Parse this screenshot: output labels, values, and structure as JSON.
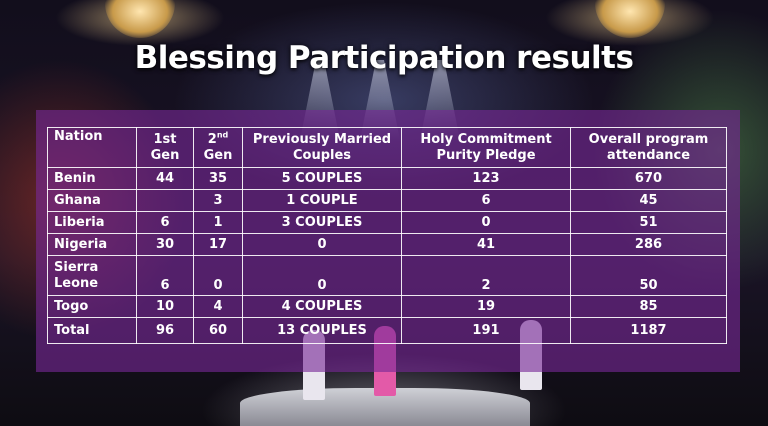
{
  "title": "Blessing Participation results",
  "headers": {
    "nation": "Nation",
    "gen1": [
      "1st",
      "Gen"
    ],
    "gen2": [
      "2",
      "nd",
      "Gen"
    ],
    "married": [
      "Previously Married",
      "Couples"
    ],
    "holy": [
      "Holy Commitment",
      "Purity Pledge"
    ],
    "overall": [
      "Overall program",
      "attendance"
    ]
  },
  "rows": [
    {
      "nation": [
        "Benin"
      ],
      "gen1": "44",
      "gen2": "35",
      "married": "5 COUPLES",
      "holy": "123",
      "overall": "670"
    },
    {
      "nation": [
        "Ghana"
      ],
      "gen1": "",
      "gen2": "3",
      "married": "1 COUPLE",
      "holy": "6",
      "overall": "45"
    },
    {
      "nation": [
        "Liberia"
      ],
      "gen1": "6",
      "gen2": "1",
      "married": "3 COUPLES",
      "holy": "0",
      "overall": "51"
    },
    {
      "nation": [
        "Nigeria"
      ],
      "gen1": "30",
      "gen2": "17",
      "married": "0",
      "holy": "41",
      "overall": "286"
    },
    {
      "nation": [
        "Sierra",
        "Leone"
      ],
      "gen1": "6",
      "gen2": "0",
      "married": "0",
      "holy": "2",
      "overall": "50"
    },
    {
      "nation": [
        "Togo"
      ],
      "gen1": "10",
      "gen2": "4",
      "married": "4 COUPLES",
      "holy": "19",
      "overall": "85"
    },
    {
      "nation": [
        "Total"
      ],
      "gen1": "96",
      "gen2": "60",
      "married": "13 COUPLES",
      "holy": "191",
      "overall": "1187"
    }
  ]
}
